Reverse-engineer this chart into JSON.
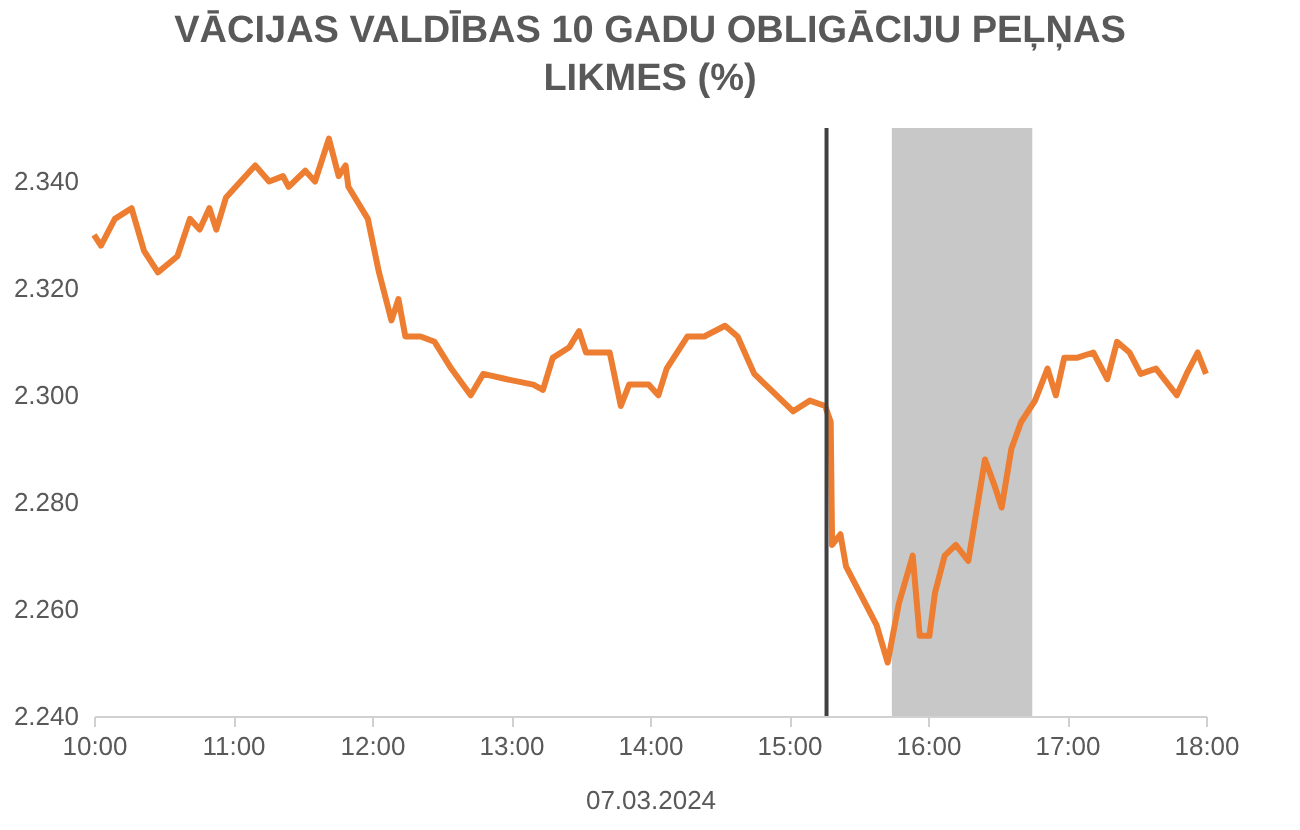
{
  "chart_data": {
    "type": "line",
    "title": "VĀCIJAS VALDĪBAS 10 GADU OBLIGĀCIJU PEĻŅAS LIKMES (%)",
    "xlabel": "07.03.2024",
    "xlim": [
      10,
      18
    ],
    "xticks": [
      {
        "value": 10,
        "label": "10:00"
      },
      {
        "value": 11,
        "label": "11:00"
      },
      {
        "value": 12,
        "label": "12:00"
      },
      {
        "value": 13,
        "label": "13:00"
      },
      {
        "value": 14,
        "label": "14:00"
      },
      {
        "value": 15,
        "label": "15:00"
      },
      {
        "value": 16,
        "label": "16:00"
      },
      {
        "value": 17,
        "label": "17:00"
      },
      {
        "value": 18,
        "label": "18:00"
      }
    ],
    "ylim": [
      2.24,
      2.35
    ],
    "yticks": [
      {
        "value": 2.24,
        "label": "2.240"
      },
      {
        "value": 2.26,
        "label": "2.260"
      },
      {
        "value": 2.28,
        "label": "2.280"
      },
      {
        "value": 2.3,
        "label": "2.300"
      },
      {
        "value": 2.32,
        "label": "2.320"
      },
      {
        "value": 2.34,
        "label": "2.340"
      }
    ],
    "grid": false,
    "marker": "none",
    "line_style": "solid",
    "ref_lines": [
      {
        "axis": "x",
        "value": 15.27,
        "color": "#404040"
      }
    ],
    "bands": [
      {
        "axis": "x",
        "from": 15.74,
        "to": 16.75,
        "color": "#c8c8c8"
      }
    ],
    "series": [
      {
        "color": "#ed7d31",
        "x": [
          10.0,
          10.05,
          10.15,
          10.27,
          10.36,
          10.46,
          10.6,
          10.69,
          10.76,
          10.83,
          10.88,
          10.95,
          11.02,
          11.16,
          11.26,
          11.36,
          11.4,
          11.52,
          11.59,
          11.69,
          11.76,
          11.81,
          11.83,
          11.97,
          12.05,
          12.14,
          12.19,
          12.24,
          12.35,
          12.45,
          12.57,
          12.71,
          12.8,
          12.97,
          13.16,
          13.23,
          13.3,
          13.42,
          13.49,
          13.54,
          13.71,
          13.79,
          13.85,
          13.99,
          14.06,
          14.12,
          14.27,
          14.39,
          14.54,
          14.63,
          14.75,
          14.87,
          15.03,
          15.15,
          15.26,
          15.3,
          15.31,
          15.37,
          15.41,
          15.53,
          15.63,
          15.71,
          15.79,
          15.89,
          15.94,
          16.01,
          16.05,
          16.12,
          16.2,
          16.29,
          16.41,
          16.48,
          16.53,
          16.6,
          16.67,
          16.77,
          16.86,
          16.92,
          16.98,
          17.07,
          17.19,
          17.29,
          17.36,
          17.45,
          17.53,
          17.64,
          17.79,
          17.86,
          17.94,
          18.0
        ],
        "values": [
          2.33,
          2.328,
          2.333,
          2.335,
          2.327,
          2.323,
          2.326,
          2.333,
          2.331,
          2.335,
          2.331,
          2.337,
          2.339,
          2.343,
          2.34,
          2.341,
          2.339,
          2.342,
          2.34,
          2.348,
          2.341,
          2.343,
          2.339,
          2.333,
          2.323,
          2.314,
          2.318,
          2.311,
          2.311,
          2.31,
          2.305,
          2.3,
          2.304,
          2.303,
          2.302,
          2.301,
          2.307,
          2.309,
          2.312,
          2.308,
          2.308,
          2.298,
          2.302,
          2.302,
          2.3,
          2.305,
          2.311,
          2.311,
          2.313,
          2.311,
          2.304,
          2.301,
          2.297,
          2.299,
          2.298,
          2.295,
          2.272,
          2.274,
          2.268,
          2.262,
          2.257,
          2.25,
          2.261,
          2.27,
          2.255,
          2.255,
          2.263,
          2.27,
          2.272,
          2.269,
          2.288,
          2.283,
          2.279,
          2.29,
          2.295,
          2.299,
          2.305,
          2.3,
          2.307,
          2.307,
          2.308,
          2.303,
          2.31,
          2.308,
          2.304,
          2.305,
          2.3,
          2.304,
          2.308,
          2.304
        ]
      }
    ]
  }
}
